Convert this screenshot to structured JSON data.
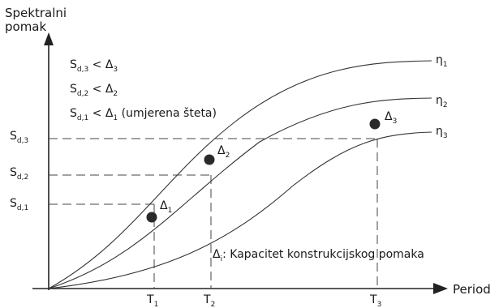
{
  "axes": {
    "y_label_line1": "Spektralni",
    "y_label_line2": "pomak",
    "x_label": "Period"
  },
  "y_ticks": [
    {
      "base": "S",
      "sub": "d,3"
    },
    {
      "base": "S",
      "sub": "d,2"
    },
    {
      "base": "S",
      "sub": "d,1"
    }
  ],
  "x_ticks": [
    {
      "base": "T",
      "sub": "1"
    },
    {
      "base": "T",
      "sub": "2"
    },
    {
      "base": "T",
      "sub": "3"
    }
  ],
  "curves": [
    {
      "base": "η",
      "sub": "1"
    },
    {
      "base": "η",
      "sub": "2"
    },
    {
      "base": "η",
      "sub": "3"
    }
  ],
  "points": [
    {
      "base": "Δ",
      "sub": "1"
    },
    {
      "base": "Δ",
      "sub": "2"
    },
    {
      "base": "Δ",
      "sub": "3"
    }
  ],
  "conditions": [
    {
      "a": "S",
      "a_sub": "d,3",
      "op": " < ",
      "b": "Δ",
      "b_sub": "3",
      "suffix": ""
    },
    {
      "a": "S",
      "a_sub": "d,2",
      "op": " < ",
      "b": "Δ",
      "b_sub": "2",
      "suffix": ""
    },
    {
      "a": "S",
      "a_sub": "d,1",
      "op": " < ",
      "b": "Δ",
      "b_sub": "1",
      "suffix": " (umjerena šteta)"
    }
  ],
  "note": {
    "a": "Δ",
    "a_sub": "i",
    "text": ": Kapacitet konstrukcijskog pomaka"
  },
  "colors": {
    "line": "#333333",
    "dash": "#444444",
    "point": "#2a2a2a"
  }
}
